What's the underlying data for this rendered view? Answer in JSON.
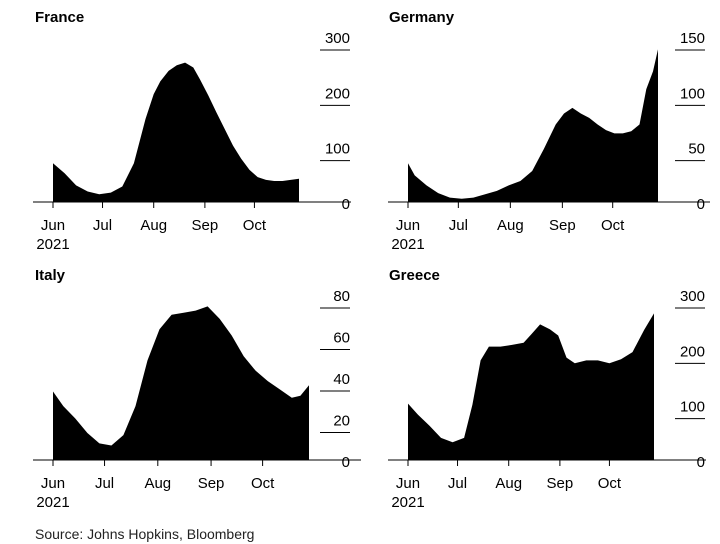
{
  "source": "Source: Johns Hopkins, Bloomberg",
  "chart_data": [
    {
      "type": "area",
      "title": "France",
      "x_ticks": [
        "Jun\n2021",
        "Jul",
        "Aug",
        "Sep",
        "Oct"
      ],
      "y_ticks": [
        0,
        100,
        200,
        300
      ],
      "ylim": [
        0,
        300
      ],
      "xlim": [
        "2021-06-01",
        "2021-10-28"
      ],
      "grid": false,
      "series": [
        {
          "x": [
            "2021-06-01",
            "2021-06-08",
            "2021-06-15",
            "2021-06-22",
            "2021-06-29",
            "2021-07-06",
            "2021-07-13",
            "2021-07-20",
            "2021-07-27",
            "2021-08-01",
            "2021-08-05",
            "2021-08-10",
            "2021-08-15",
            "2021-08-20",
            "2021-08-25",
            "2021-08-29",
            "2021-09-03",
            "2021-09-08",
            "2021-09-13",
            "2021-09-18",
            "2021-09-23",
            "2021-09-28",
            "2021-10-03",
            "2021-10-08",
            "2021-10-13",
            "2021-10-18",
            "2021-10-23",
            "2021-10-28"
          ],
          "values": [
            70,
            52,
            30,
            19,
            14,
            17,
            28,
            70,
            150,
            195,
            218,
            237,
            247,
            252,
            243,
            222,
            193,
            162,
            132,
            102,
            78,
            58,
            45,
            40,
            38,
            38,
            40,
            42
          ]
        }
      ]
    },
    {
      "type": "area",
      "title": "Germany",
      "x_ticks": [
        "Jun\n2021",
        "Jul",
        "Aug",
        "Sep",
        "Oct"
      ],
      "y_ticks": [
        0,
        50,
        100,
        150
      ],
      "ylim": [
        0,
        150
      ],
      "xlim": [
        "2021-06-01",
        "2021-10-28"
      ],
      "grid": false,
      "series": [
        {
          "x": [
            "2021-06-01",
            "2021-06-05",
            "2021-06-12",
            "2021-06-19",
            "2021-06-26",
            "2021-07-03",
            "2021-07-10",
            "2021-07-17",
            "2021-07-24",
            "2021-07-31",
            "2021-08-07",
            "2021-08-14",
            "2021-08-21",
            "2021-08-28",
            "2021-09-02",
            "2021-09-07",
            "2021-09-12",
            "2021-09-17",
            "2021-09-22",
            "2021-09-27",
            "2021-10-02",
            "2021-10-07",
            "2021-10-12",
            "2021-10-17",
            "2021-10-21",
            "2021-10-25",
            "2021-10-28"
          ],
          "values": [
            35,
            24,
            15,
            8,
            4,
            3,
            4,
            7,
            10,
            15,
            19,
            28,
            48,
            70,
            80,
            85,
            80,
            76,
            70,
            65,
            62,
            62,
            64,
            70,
            102,
            118,
            138
          ]
        }
      ]
    },
    {
      "type": "area",
      "title": "Italy",
      "x_ticks": [
        "Jun\n2021",
        "Jul",
        "Aug",
        "Sep",
        "Oct"
      ],
      "y_ticks": [
        0,
        20,
        40,
        60,
        80
      ],
      "ylim": [
        0,
        80
      ],
      "xlim": [
        "2021-06-01",
        "2021-10-28"
      ],
      "grid": false,
      "series": [
        {
          "x": [
            "2021-06-01",
            "2021-06-07",
            "2021-06-14",
            "2021-06-21",
            "2021-06-28",
            "2021-07-05",
            "2021-07-12",
            "2021-07-19",
            "2021-07-26",
            "2021-08-02",
            "2021-08-09",
            "2021-08-16",
            "2021-08-23",
            "2021-08-30",
            "2021-09-06",
            "2021-09-13",
            "2021-09-20",
            "2021-09-27",
            "2021-10-04",
            "2021-10-11",
            "2021-10-18",
            "2021-10-23",
            "2021-10-28"
          ],
          "values": [
            33,
            26,
            20,
            13,
            8,
            7,
            12,
            26,
            48,
            63,
            70,
            71,
            72,
            74,
            68,
            60,
            50,
            43,
            38,
            34,
            30,
            31,
            36
          ]
        }
      ]
    },
    {
      "type": "area",
      "title": "Greece",
      "x_ticks": [
        "Jun\n2021",
        "Jul",
        "Aug",
        "Sep",
        "Oct"
      ],
      "y_ticks": [
        0,
        100,
        200,
        300
      ],
      "ylim": [
        0,
        300
      ],
      "xlim": [
        "2021-06-01",
        "2021-10-28"
      ],
      "grid": false,
      "series": [
        {
          "x": [
            "2021-06-01",
            "2021-06-07",
            "2021-06-14",
            "2021-06-21",
            "2021-06-28",
            "2021-07-05",
            "2021-07-10",
            "2021-07-15",
            "2021-07-20",
            "2021-07-27",
            "2021-08-03",
            "2021-08-10",
            "2021-08-15",
            "2021-08-20",
            "2021-08-26",
            "2021-08-31",
            "2021-09-05",
            "2021-09-10",
            "2021-09-17",
            "2021-09-24",
            "2021-10-01",
            "2021-10-08",
            "2021-10-15",
            "2021-10-22",
            "2021-10-28"
          ],
          "values": [
            102,
            82,
            62,
            40,
            32,
            40,
            100,
            180,
            205,
            205,
            208,
            212,
            228,
            245,
            236,
            225,
            185,
            175,
            180,
            180,
            175,
            182,
            195,
            235,
            265
          ]
        }
      ]
    }
  ]
}
